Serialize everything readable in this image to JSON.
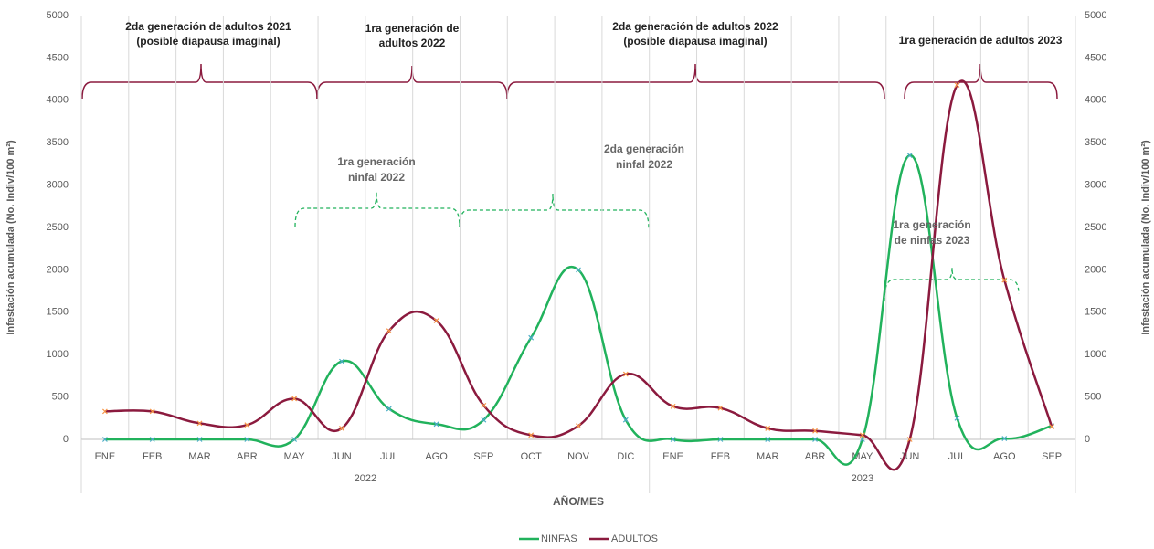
{
  "chart_data": {
    "type": "line",
    "x_title": "AÑO/MES",
    "y_title": "Infestación acumulada (No. Indiv/100 m²)",
    "y2_title": "Infestación acumulada (No. Indiv/100 m²)",
    "categories": [
      "ENE",
      "FEB",
      "MAR",
      "ABR",
      "MAY",
      "JUN",
      "JUL",
      "AGO",
      "SEP",
      "OCT",
      "NOV",
      "DIC",
      "ENE",
      "FEB",
      "MAR",
      "ABR",
      "MAY",
      "JUN",
      "JUL",
      "AGO",
      "SEP"
    ],
    "group_labels": [
      "2022",
      "2023"
    ],
    "series": [
      {
        "name": "NINFAS",
        "color": "#21b25c",
        "marker_color": "#4bacc6",
        "values": [
          0,
          0,
          0,
          0,
          0,
          920,
          360,
          180,
          230,
          1200,
          2000,
          230,
          0,
          0,
          0,
          0,
          0,
          3350,
          250,
          10,
          160
        ]
      },
      {
        "name": "ADULTOS",
        "color": "#8b1a3e",
        "marker_color": "#f79646",
        "values": [
          330,
          330,
          190,
          170,
          480,
          130,
          1280,
          1400,
          400,
          50,
          160,
          770,
          390,
          370,
          130,
          100,
          50,
          0,
          4180,
          1880,
          150
        ]
      }
    ],
    "ylim": [
      0,
      5000
    ],
    "yticks": [
      0,
      500,
      1000,
      1500,
      2000,
      2500,
      3000,
      3500,
      4000,
      4500,
      5000
    ],
    "y2lim": [
      0,
      5000
    ],
    "y2ticks": [
      0,
      500,
      1000,
      1500,
      2000,
      2500,
      3000,
      3500,
      4000,
      4500,
      5000
    ],
    "legend": "bottom",
    "adult_annotations": [
      {
        "lines": [
          "2da generación de adultos 2021",
          "(posible diapausa imaginal)"
        ]
      },
      {
        "lines": [
          "1ra generación de",
          "adultos 2022"
        ]
      },
      {
        "lines": [
          "2da generación de adultos 2022",
          "(posible diapausa imaginal)"
        ]
      },
      {
        "lines": [
          "1ra generación de adultos 2023"
        ]
      }
    ],
    "nymph_annotations": [
      {
        "lines": [
          "1ra generación",
          "ninfal 2022"
        ]
      },
      {
        "lines": [
          "2da generación",
          "ninfal 2022"
        ]
      },
      {
        "lines": [
          "1ra generación",
          "de ninfas 2023"
        ]
      }
    ]
  }
}
